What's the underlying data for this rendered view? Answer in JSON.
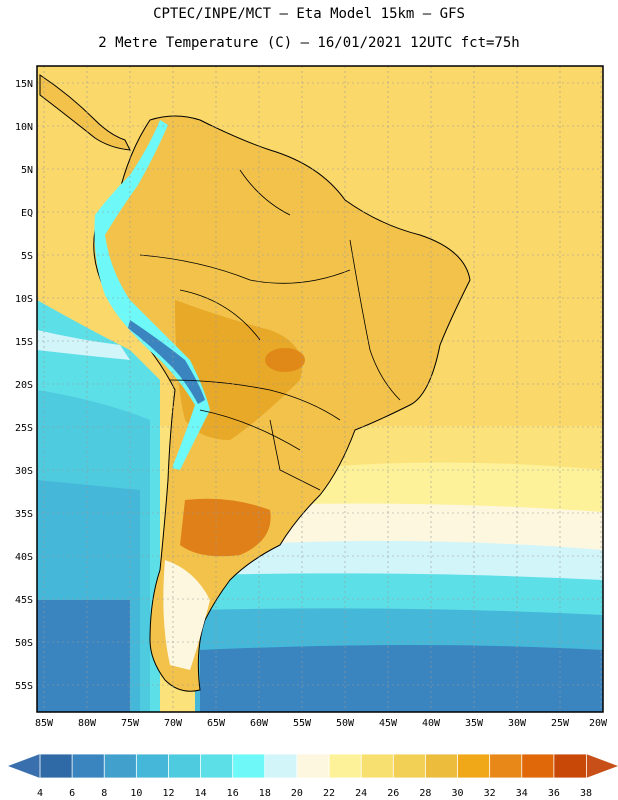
{
  "header": {
    "line1": "CPTEC/INPE/MCT –  Eta Model 15km – GFS",
    "line2": "2 Metre Temperature (C) – 16/01/2021 12UTC fct=75h"
  },
  "axes": {
    "lat_labels": [
      "15N",
      "10N",
      "5N",
      "EQ",
      "5S",
      "10S",
      "15S",
      "20S",
      "25S",
      "30S",
      "35S",
      "40S",
      "45S",
      "50S",
      "55S"
    ],
    "lon_labels": [
      "85W",
      "80W",
      "75W",
      "70W",
      "65W",
      "60W",
      "55W",
      "50W",
      "45W",
      "40W",
      "35W",
      "30W",
      "25W",
      "20W"
    ]
  },
  "colorbar": {
    "labels": [
      "4",
      "6",
      "8",
      "10",
      "12",
      "14",
      "16",
      "18",
      "20",
      "22",
      "24",
      "26",
      "28",
      "30",
      "32",
      "34",
      "36",
      "38"
    ],
    "colors": [
      "#2f6aa6",
      "#3a85bf",
      "#41a1cc",
      "#45b7d8",
      "#4fcbe0",
      "#5ddfe8",
      "#6ef8f8",
      "#d2f5fa",
      "#fdf7e0",
      "#fdf29a",
      "#f8e070",
      "#f2d055",
      "#ecbc3c",
      "#f0a818",
      "#e88818",
      "#e06808",
      "#c84808"
    ],
    "low_color": "#3a6fad",
    "high_color": "#c85018"
  }
}
